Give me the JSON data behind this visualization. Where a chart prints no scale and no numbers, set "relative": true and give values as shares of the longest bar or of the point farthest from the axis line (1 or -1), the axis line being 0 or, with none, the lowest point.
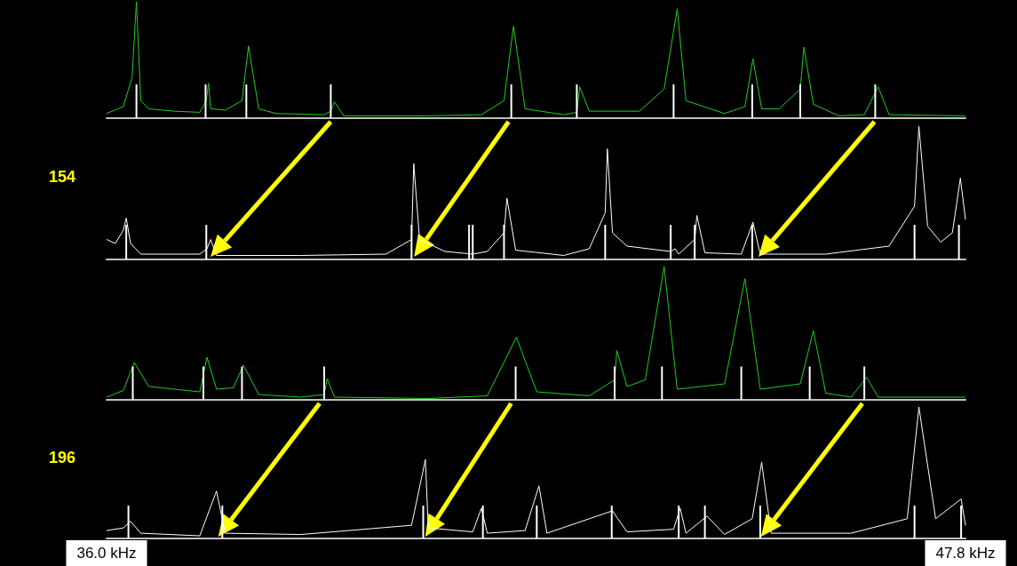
{
  "chart_data": [
    {
      "type": "line",
      "relative": true,
      "xlim": [
        36.0,
        47.8
      ],
      "tick_labels": false,
      "marker": "none",
      "series": [
        {
          "color": "#22cc22",
          "x": [
            36.0,
            36.23,
            36.35,
            36.41,
            36.47,
            36.58,
            36.93,
            37.28,
            37.37,
            37.4,
            37.43,
            37.63,
            37.86,
            37.95,
            38.09,
            38.33,
            38.99,
            39.08,
            39.13,
            39.26,
            40.42,
            41.15,
            41.46,
            41.59,
            41.75,
            42.28,
            42.46,
            42.5,
            42.63,
            43.32,
            43.66,
            43.84,
            43.96,
            44.49,
            44.77,
            44.88,
            45.0,
            45.24,
            45.53,
            45.58,
            45.71,
            46.06,
            46.41,
            46.6,
            46.75,
            47.8
          ],
          "values": [
            0.04,
            0.1,
            0.35,
            1.0,
            0.15,
            0.08,
            0.06,
            0.05,
            0.15,
            0.3,
            0.08,
            0.07,
            0.15,
            0.62,
            0.08,
            0.04,
            0.03,
            0.06,
            0.14,
            0.02,
            0.02,
            0.03,
            0.15,
            0.79,
            0.08,
            0.03,
            0.05,
            0.27,
            0.06,
            0.06,
            0.25,
            0.94,
            0.15,
            0.04,
            0.1,
            0.51,
            0.08,
            0.08,
            0.25,
            0.61,
            0.12,
            0.02,
            0.03,
            0.27,
            0.03,
            0.02
          ]
        },
        {
          "type": "bar",
          "color": "#ffffff",
          "x": [
            36.41,
            37.36,
            37.92,
            39.08,
            41.56,
            42.46,
            43.79,
            44.87,
            45.53,
            46.56
          ],
          "values": [
            0.29,
            0.29,
            0.29,
            0.29,
            0.29,
            0.29,
            0.29,
            0.29,
            0.29,
            0.29
          ]
        }
      ]
    },
    {
      "type": "line",
      "relative": true,
      "ylabel": "154",
      "xlim": [
        36.0,
        47.8
      ],
      "tick_labels": false,
      "marker": "none",
      "series": [
        {
          "color": "#ffffff",
          "x": [
            36.0,
            36.12,
            36.23,
            36.27,
            36.33,
            36.47,
            37.28,
            37.38,
            37.43,
            37.51,
            38.67,
            39.84,
            40.19,
            40.22,
            40.3,
            40.65,
            41.03,
            41.23,
            41.46,
            41.5,
            41.62,
            42.28,
            42.63,
            42.85,
            42.88,
            42.95,
            43.15,
            43.75,
            43.81,
            43.86,
            44.08,
            44.11,
            44.22,
            44.72,
            44.88,
            44.98,
            45.88,
            46.75,
            47.1,
            47.16,
            47.28,
            47.46,
            47.62,
            47.73,
            47.8
          ],
          "values": [
            0.15,
            0.12,
            0.22,
            0.31,
            0.12,
            0.04,
            0.04,
            0.08,
            0.15,
            0.03,
            0.03,
            0.04,
            0.15,
            0.72,
            0.15,
            0.06,
            0.04,
            0.06,
            0.2,
            0.46,
            0.07,
            0.03,
            0.08,
            0.35,
            0.83,
            0.2,
            0.1,
            0.06,
            0.08,
            0.04,
            0.15,
            0.33,
            0.05,
            0.04,
            0.28,
            0.04,
            0.04,
            0.1,
            0.4,
            1.0,
            0.25,
            0.13,
            0.2,
            0.61,
            0.3
          ]
        },
        {
          "type": "bar",
          "color": "#ffffff",
          "x": [
            36.27,
            37.37,
            40.19,
            40.98,
            41.03,
            41.46,
            42.85,
            43.75,
            44.08,
            44.87,
            47.1,
            47.71
          ],
          "values": [
            0.26,
            0.26,
            0.26,
            0.26,
            0.26,
            0.26,
            0.26,
            0.26,
            0.26,
            0.26,
            0.26,
            0.26
          ]
        }
      ]
    },
    {
      "type": "line",
      "relative": true,
      "xlim": [
        36.0,
        47.8
      ],
      "tick_labels": false,
      "marker": "none",
      "series": [
        {
          "color": "#22cc22",
          "x": [
            36.0,
            36.23,
            36.38,
            36.58,
            37.28,
            37.38,
            37.51,
            37.74,
            37.88,
            38.09,
            38.67,
            38.99,
            39.03,
            39.13,
            40.42,
            41.23,
            41.63,
            41.91,
            42.63,
            42.98,
            43.01,
            43.15,
            43.4,
            43.66,
            43.84,
            44.49,
            44.77,
            44.98,
            45.53,
            45.71,
            45.88,
            46.23,
            46.44,
            46.6,
            47.8
          ],
          "values": [
            0.02,
            0.07,
            0.28,
            0.1,
            0.06,
            0.32,
            0.08,
            0.09,
            0.26,
            0.04,
            0.02,
            0.04,
            0.16,
            0.02,
            0.01,
            0.03,
            0.47,
            0.06,
            0.03,
            0.15,
            0.37,
            0.1,
            0.15,
            1.0,
            0.08,
            0.12,
            0.91,
            0.08,
            0.12,
            0.52,
            0.05,
            0.02,
            0.17,
            0.02,
            0.02
          ]
        },
        {
          "type": "bar",
          "color": "#ffffff",
          "x": [
            36.36,
            37.33,
            37.86,
            38.99,
            41.62,
            42.98,
            43.63,
            44.72,
            45.66,
            46.41
          ],
          "values": [
            0.25,
            0.25,
            0.25,
            0.25,
            0.25,
            0.25,
            0.25,
            0.25,
            0.25,
            0.25
          ]
        }
      ]
    },
    {
      "type": "line",
      "relative": true,
      "ylabel": "196",
      "xlim": [
        36.0,
        47.8
      ],
      "xticks": [
        {
          "value": 36.0,
          "label": "36.0 kHz"
        },
        {
          "value": 47.8,
          "label": "47.8 kHz"
        }
      ],
      "tick_labels": "x",
      "marker": "none",
      "series": [
        {
          "color": "#ffffff",
          "x": [
            36.0,
            36.23,
            36.33,
            36.47,
            37.28,
            37.51,
            37.63,
            38.67,
            40.19,
            40.38,
            40.42,
            41.03,
            41.15,
            41.23,
            41.75,
            41.94,
            42.05,
            42.95,
            43.15,
            43.79,
            43.88,
            43.96,
            44.25,
            44.49,
            44.87,
            45.0,
            45.13,
            46.23,
            47.0,
            47.16,
            47.39,
            47.74,
            47.8
          ],
          "values": [
            0.06,
            0.08,
            0.13,
            0.04,
            0.02,
            0.36,
            0.04,
            0.03,
            0.1,
            0.6,
            0.08,
            0.05,
            0.23,
            0.04,
            0.06,
            0.4,
            0.04,
            0.21,
            0.05,
            0.07,
            0.23,
            0.04,
            0.17,
            0.03,
            0.15,
            0.58,
            0.04,
            0.04,
            0.15,
            1.0,
            0.15,
            0.3,
            0.1
          ]
        },
        {
          "type": "bar",
          "color": "#ffffff",
          "x": [
            36.3,
            37.59,
            40.35,
            41.17,
            41.91,
            42.94,
            43.86,
            44.22,
            44.98,
            47.1,
            47.74
          ],
          "values": [
            0.25,
            0.25,
            0.25,
            0.25,
            0.25,
            0.25,
            0.25,
            0.25,
            0.25,
            0.25,
            0.25
          ]
        }
      ]
    }
  ]
}
